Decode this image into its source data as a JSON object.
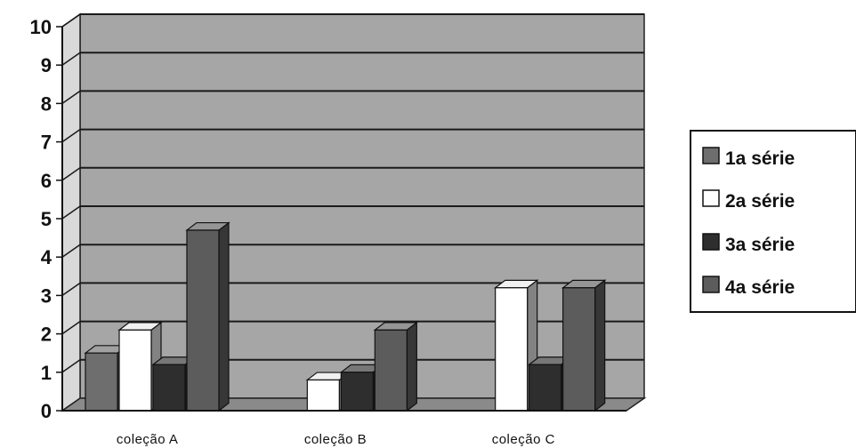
{
  "chart_data": {
    "type": "bar",
    "categories": [
      "coleção A",
      "coleção B",
      "coleção C"
    ],
    "series": [
      {
        "name": "1a série",
        "values": [
          1.5,
          0,
          0
        ],
        "color": "#6e6e6e"
      },
      {
        "name": "2a série",
        "values": [
          2.1,
          0.8,
          3.2
        ],
        "color": "#ffffff"
      },
      {
        "name": "3a série",
        "values": [
          1.2,
          1.0,
          1.2
        ],
        "color": "#2e2e2e"
      },
      {
        "name": "4a série",
        "values": [
          4.7,
          2.1,
          3.2
        ],
        "color": "#5c5c5c"
      }
    ],
    "ylim": [
      0,
      10
    ],
    "yticks": [
      "0",
      "1",
      "2",
      "3",
      "4",
      "5",
      "6",
      "7",
      "8",
      "9",
      "10"
    ],
    "grid": true,
    "legend": "right",
    "plot_color": "#a6a6a6"
  }
}
